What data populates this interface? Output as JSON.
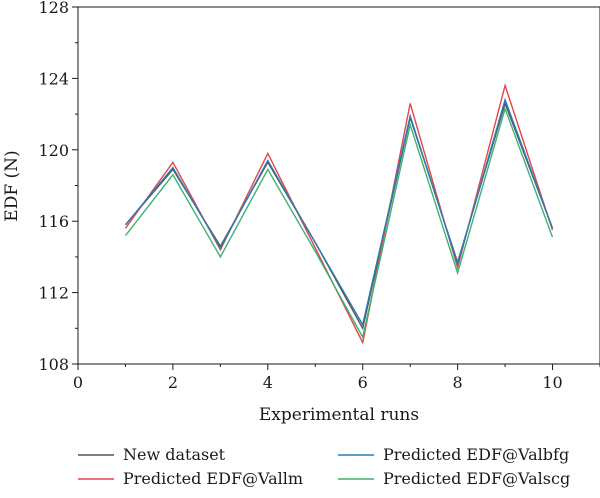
{
  "chart_data": {
    "type": "line",
    "xlabel": "Experimental runs",
    "ylabel": "EDF (N)",
    "xlim": [
      0,
      11
    ],
    "ylim": [
      108,
      128
    ],
    "xticks": [
      0,
      2,
      4,
      6,
      8,
      10
    ],
    "yticks": [
      108,
      112,
      116,
      120,
      124,
      128
    ],
    "xtick_labels": [
      "0",
      "2",
      "4",
      "6",
      "8",
      "10"
    ],
    "ytick_labels": [
      "108",
      "112",
      "116",
      "120",
      "124",
      "128"
    ],
    "grid": false,
    "legend_position": "bottom",
    "x": [
      1,
      2,
      3,
      4,
      5,
      6,
      7,
      8,
      9,
      10
    ],
    "series": [
      {
        "name": "New dataset",
        "color": "#555555",
        "values": [
          115.8,
          118.9,
          114.6,
          119.3,
          114.8,
          110.0,
          121.8,
          113.7,
          122.6,
          115.6
        ]
      },
      {
        "name": "Predicted EDF@Vallm",
        "color": "#e0474c",
        "values": [
          115.6,
          119.3,
          114.4,
          119.8,
          114.5,
          109.2,
          122.6,
          113.4,
          123.6,
          115.5
        ]
      },
      {
        "name": "Predicted EDF@Valbfg",
        "color": "#2c7bb6",
        "values": [
          115.8,
          119.0,
          114.5,
          119.4,
          114.8,
          110.2,
          121.9,
          113.6,
          122.8,
          115.6
        ]
      },
      {
        "name": "Predicted EDF@Valscg",
        "color": "#3cb371",
        "values": [
          115.2,
          118.6,
          114.0,
          118.9,
          114.3,
          109.5,
          121.4,
          113.1,
          122.3,
          115.1
        ]
      }
    ]
  }
}
